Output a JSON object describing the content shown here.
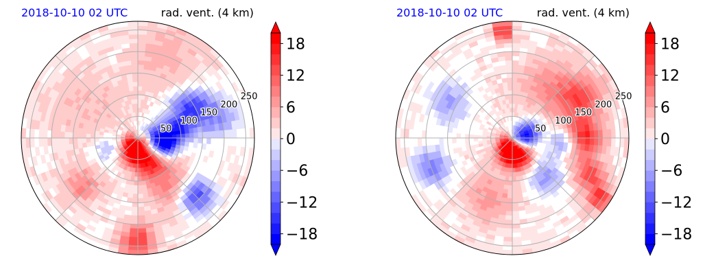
{
  "chart_data": [
    {
      "type": "heatmap",
      "projection": "polar",
      "title_left": "2018-10-10 02 UTC",
      "title_right": "rad. vent. (4 km)",
      "title_left_color": "#0000ff",
      "radial_ticks": [
        "50",
        "100",
        "150",
        "200",
        "250"
      ],
      "radial_tick_values": [
        50,
        100,
        150,
        200,
        250
      ],
      "r_max": 270,
      "angular_gridlines_deg": [
        0,
        45,
        90,
        135,
        180,
        225,
        270,
        315
      ],
      "grid": true,
      "colorbar": {
        "ticks": [
          "18",
          "12",
          "6",
          "0",
          "−6",
          "−12",
          "−18"
        ],
        "tick_values": [
          18,
          12,
          6,
          0,
          -6,
          -12,
          -18
        ],
        "range": [
          -20,
          20
        ],
        "levels": 20,
        "extend": "both",
        "colors": {
          "min": "#0000ff",
          "mid": "#ffffff",
          "max": "#ff0000"
        }
      },
      "features": [
        {
          "azimuth_deg": 200,
          "range": 25,
          "value": 18,
          "spread": 25
        },
        {
          "azimuth_deg": 155,
          "range": 55,
          "value": 16,
          "spread": 30
        },
        {
          "azimuth_deg": 95,
          "range": 45,
          "value": -18,
          "spread": 22
        },
        {
          "azimuth_deg": 80,
          "range": 90,
          "value": -16,
          "spread": 25
        },
        {
          "azimuth_deg": 135,
          "range": 190,
          "value": -15,
          "spread": 30
        },
        {
          "azimuth_deg": 60,
          "range": 140,
          "value": -14,
          "spread": 30
        },
        {
          "azimuth_deg": 180,
          "range": 240,
          "value": 13,
          "spread": 28
        },
        {
          "azimuth_deg": 145,
          "range": 140,
          "value": 8,
          "spread": 40
        },
        {
          "azimuth_deg": 75,
          "range": 190,
          "value": -9,
          "spread": 35
        },
        {
          "azimuth_deg": 20,
          "range": 200,
          "value": 4,
          "spread": 55
        },
        {
          "azimuth_deg": 300,
          "range": 140,
          "value": 3,
          "spread": 60
        },
        {
          "azimuth_deg": 110,
          "range": 70,
          "value": -12,
          "spread": 18
        },
        {
          "azimuth_deg": 230,
          "range": 170,
          "value": 7,
          "spread": 30
        },
        {
          "azimuth_deg": 250,
          "range": 80,
          "value": -5,
          "spread": 25
        }
      ]
    },
    {
      "type": "heatmap",
      "projection": "polar",
      "title_left": "2018-10-10 02 UTC",
      "title_right": "rad. vent. (4 km)",
      "title_left_color": "#0000ff",
      "radial_ticks": [
        "50",
        "100",
        "150",
        "200",
        "250"
      ],
      "radial_tick_values": [
        50,
        100,
        150,
        200,
        250
      ],
      "r_max": 270,
      "angular_gridlines_deg": [
        0,
        45,
        90,
        135,
        180,
        225,
        270,
        315
      ],
      "grid": true,
      "colorbar": {
        "ticks": [
          "18",
          "12",
          "6",
          "0",
          "−6",
          "−12",
          "−18"
        ],
        "tick_values": [
          18,
          12,
          6,
          0,
          -6,
          -12,
          -18
        ],
        "range": [
          -20,
          20
        ],
        "levels": 20,
        "extend": "both",
        "colors": {
          "min": "#0000ff",
          "mid": "#ffffff",
          "max": "#ff0000"
        }
      },
      "features": [
        {
          "azimuth_deg": 195,
          "range": 30,
          "value": 18,
          "spread": 25
        },
        {
          "azimuth_deg": 160,
          "range": 45,
          "value": 17,
          "spread": 25
        },
        {
          "azimuth_deg": 100,
          "range": 20,
          "value": -18,
          "spread": 18
        },
        {
          "azimuth_deg": 70,
          "range": 45,
          "value": -14,
          "spread": 20
        },
        {
          "azimuth_deg": 60,
          "range": 180,
          "value": 12,
          "spread": 40
        },
        {
          "azimuth_deg": 90,
          "range": 170,
          "value": 14,
          "spread": 30
        },
        {
          "azimuth_deg": 115,
          "range": 200,
          "value": 12,
          "spread": 25
        },
        {
          "azimuth_deg": 355,
          "range": 250,
          "value": 17,
          "spread": 15
        },
        {
          "azimuth_deg": 125,
          "range": 245,
          "value": 15,
          "spread": 18
        },
        {
          "azimuth_deg": 140,
          "range": 120,
          "value": -8,
          "spread": 30
        },
        {
          "azimuth_deg": 250,
          "range": 200,
          "value": -10,
          "spread": 30
        },
        {
          "azimuth_deg": 300,
          "range": 170,
          "value": -7,
          "spread": 35
        },
        {
          "azimuth_deg": 30,
          "range": 150,
          "value": 5,
          "spread": 45
        },
        {
          "azimuth_deg": 200,
          "range": 150,
          "value": 6,
          "spread": 40
        },
        {
          "azimuth_deg": 95,
          "range": 120,
          "value": -9,
          "spread": 22
        }
      ]
    }
  ]
}
